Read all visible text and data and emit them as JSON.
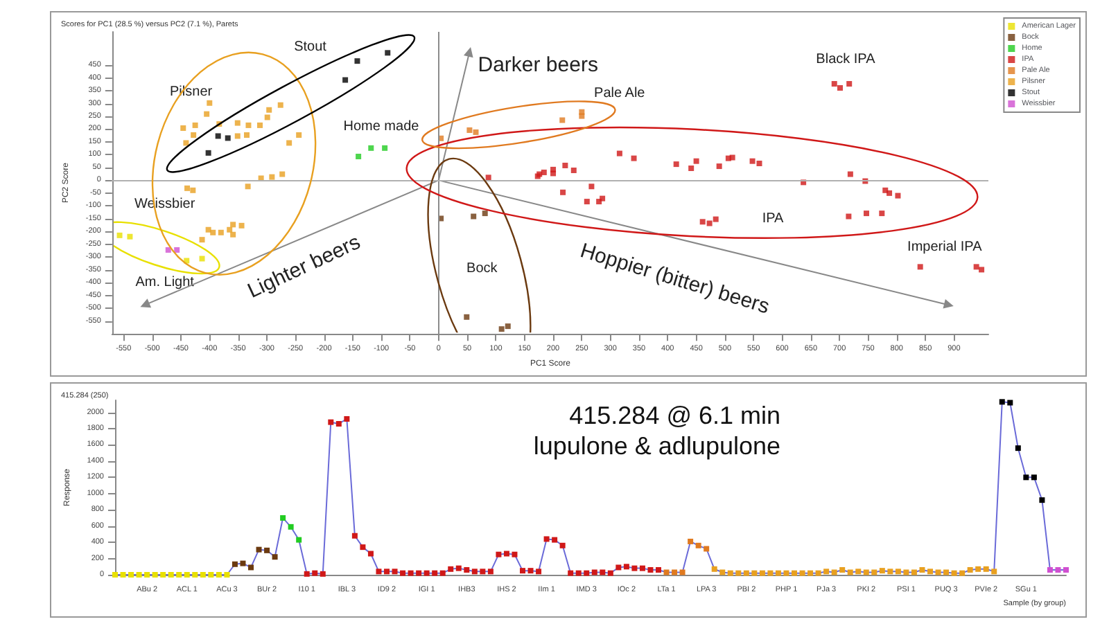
{
  "chart_data": [
    {
      "type": "scatter",
      "title": "Scores for PC1 (28.5 %) versus PC2 (7.1 %), Parets",
      "xlabel": "PC1 Score",
      "ylabel": "PC2 Score",
      "xlim": [
        -570,
        960
      ],
      "ylim": [
        -600,
        580
      ],
      "xticks": [
        -550,
        -500,
        -450,
        -400,
        -350,
        -300,
        -250,
        -200,
        -150,
        -100,
        -50,
        0,
        50,
        100,
        150,
        200,
        250,
        300,
        350,
        400,
        450,
        500,
        550,
        600,
        650,
        700,
        750,
        800,
        850,
        900
      ],
      "yticks": [
        -550,
        -500,
        -450,
        -400,
        -350,
        -300,
        -250,
        -200,
        -150,
        -100,
        -50,
        0,
        50,
        100,
        150,
        200,
        250,
        300,
        350,
        400,
        450
      ],
      "grid": false,
      "legend": "top right",
      "marker": "square",
      "ref_lines": [
        {
          "axis": "x",
          "value": 0,
          "color": "#8c8c8c"
        },
        {
          "axis": "y",
          "value": 0,
          "color": "#b0b0b0"
        }
      ],
      "series": [
        {
          "name": "American Lager",
          "color": "#e8e000",
          "x": [
            -557,
            -539,
            -413,
            -440
          ],
          "values": [
            -215,
            -220,
            -306,
            -314
          ]
        },
        {
          "name": "Bock",
          "color": "#6b3a10",
          "x": [
            4,
            61,
            81,
            49,
            110,
            121
          ],
          "values": [
            -149,
            -141,
            -129,
            -534,
            -581,
            -570
          ]
        },
        {
          "name": "Home",
          "color": "#22cc22",
          "x": [
            -118,
            -94,
            -140
          ],
          "values": [
            126,
            126,
            93
          ]
        },
        {
          "name": "IPA",
          "color": "#d01818",
          "x": [
            316,
            341,
            87,
            176,
            184,
            173,
            200,
            200,
            221,
            236,
            217,
            267,
            259,
            280,
            286,
            415,
            441,
            450,
            490,
            506,
            513,
            548,
            560,
            637,
            719,
            745,
            780,
            787,
            802,
            461,
            473,
            484,
            716,
            747,
            774,
            691,
            701,
            717,
            841,
            939,
            948
          ],
          "values": [
            105,
            86,
            11,
            24,
            31,
            16,
            42,
            27,
            58,
            39,
            -47,
            -24,
            -83,
            -83,
            -71,
            63,
            47,
            75,
            55,
            86,
            89,
            75,
            66,
            -8,
            24,
            -3,
            -39,
            -50,
            -60,
            -162,
            -168,
            -152,
            -141,
            -129,
            -129,
            377,
            361,
            377,
            -338,
            -338,
            -349
          ]
        },
        {
          "name": "Pale Ale",
          "color": "#e07a20",
          "x": [
            4,
            54,
            65,
            216,
            250,
            250
          ],
          "values": [
            164,
            196,
            188,
            235,
            251,
            267
          ]
        },
        {
          "name": "Pilsner",
          "color": "#e8a020",
          "x": [
            -400,
            -405,
            -446,
            -425,
            -428,
            -441,
            -383,
            -351,
            -332,
            -351,
            -335,
            -296,
            -276,
            -299,
            -312,
            -261,
            -244,
            -310,
            -291,
            -273,
            -333,
            -439,
            -429,
            -365,
            -359,
            -402,
            -380,
            -413,
            -359,
            -344,
            -394
          ],
          "values": [
            302,
            259,
            204,
            215,
            177,
            146,
            220,
            224,
            215,
            173,
            177,
            275,
            294,
            246,
            215,
            146,
            177,
            8,
            13,
            24,
            -24,
            -31,
            -39,
            -193,
            -212,
            -193,
            -204,
            -232,
            -173,
            -177,
            -204
          ]
        },
        {
          "name": "Stout",
          "color": "#000000",
          "x": [
            -142,
            -89,
            -163,
            -368,
            -385,
            -402
          ],
          "values": [
            466,
            498,
            392,
            165,
            173,
            107
          ]
        },
        {
          "name": "Weissbier",
          "color": "#d050d0",
          "x": [
            -472,
            -457
          ],
          "values": [
            -272,
            -272
          ]
        },
        {
          "type": "line",
          "color": "#888888",
          "marker": "triangle",
          "x": [
            0,
            54
          ],
          "values": [
            0,
            502
          ]
        },
        {
          "type": "line",
          "color": "#888888",
          "marker": "triangle",
          "x": [
            0,
            -513
          ],
          "values": [
            0,
            -487
          ]
        },
        {
          "type": "line",
          "color": "#888888",
          "marker": "triangle",
          "x": [
            0,
            891
          ],
          "values": [
            0,
            -487
          ]
        }
      ],
      "annotations": [
        "Stout",
        "Pilsner",
        "Home made",
        "Weissbier",
        "Am. Light",
        "Lighter beers",
        "Darker beers",
        "Pale Ale",
        "Black IPA",
        "IPA",
        "Imperial IPA",
        "Bock",
        "Hoppier (bitter) beers"
      ]
    },
    {
      "type": "line",
      "title": "415.284 (250)",
      "xlabel": "Sample (by group)",
      "ylabel": "Response",
      "ylim": [
        0,
        2150
      ],
      "yticks": [
        0,
        200,
        400,
        600,
        800,
        1000,
        1200,
        1400,
        1600,
        1800,
        2000
      ],
      "grid": false,
      "marker": "square",
      "color": "#6a6ad8",
      "annotations": [
        "415.284 @ 6.1 min",
        "lupulone & adlupulone"
      ],
      "categories": [
        null,
        null,
        null,
        null,
        "ABu 2",
        null,
        null,
        null,
        null,
        "ACL 1",
        null,
        null,
        null,
        null,
        "ACu 3",
        null,
        null,
        null,
        null,
        "BUr 2",
        null,
        null,
        null,
        null,
        "I10 1",
        null,
        null,
        null,
        null,
        "IBL 3",
        null,
        null,
        null,
        null,
        "ID9 2",
        null,
        null,
        null,
        null,
        "IGI 1",
        null,
        null,
        null,
        null,
        "IHB3",
        null,
        null,
        null,
        null,
        "IHS 2",
        null,
        null,
        null,
        null,
        "IIm 1",
        null,
        null,
        null,
        null,
        "IMD 3",
        null,
        null,
        null,
        null,
        "IOc 2",
        null,
        null,
        null,
        null,
        "LTa 1",
        null,
        null,
        null,
        null,
        "LPA 3",
        null,
        null,
        null,
        null,
        "PBI 2",
        null,
        null,
        null,
        null,
        "PHP 1",
        null,
        null,
        null,
        null,
        "PJa 3",
        null,
        null,
        null,
        null,
        "PKI 2",
        null,
        null,
        null,
        null,
        "PSI 1",
        null,
        null,
        null,
        null,
        "PUQ 3",
        null,
        null,
        null,
        null,
        "PVIe 2",
        null,
        null,
        null,
        null,
        "SGu 1",
        null,
        null,
        null,
        null,
        null
      ],
      "values": [
        0,
        0,
        0,
        0,
        0,
        0,
        0,
        0,
        0,
        0,
        0,
        0,
        0,
        0,
        0,
        130,
        140,
        90,
        310,
        300,
        220,
        700,
        590,
        430,
        10,
        20,
        10,
        1880,
        1860,
        1920,
        480,
        340,
        260,
        40,
        40,
        40,
        20,
        20,
        20,
        20,
        20,
        20,
        70,
        80,
        60,
        40,
        40,
        40,
        250,
        260,
        250,
        50,
        50,
        40,
        440,
        430,
        360,
        20,
        20,
        20,
        30,
        30,
        20,
        90,
        100,
        80,
        80,
        60,
        60,
        30,
        30,
        30,
        410,
        360,
        320,
        70,
        30,
        20,
        20,
        20,
        20,
        20,
        20,
        20,
        20,
        20,
        20,
        20,
        20,
        40,
        30,
        60,
        30,
        40,
        30,
        30,
        50,
        40,
        40,
        30,
        30,
        60,
        40,
        30,
        30,
        20,
        20,
        60,
        70,
        70,
        40,
        2130,
        2120,
        1560,
        1200,
        1200,
        920,
        60,
        60,
        60
      ],
      "colors": [
        "#e8e000",
        "#e8e000",
        "#e8e000",
        "#e8e000",
        "#e8e000",
        "#e8e000",
        "#e8e000",
        "#e8e000",
        "#e8e000",
        "#e8e000",
        "#e8e000",
        "#e8e000",
        "#e8e000",
        "#e8e000",
        "#e8e000",
        "#6b3a10",
        "#6b3a10",
        "#6b3a10",
        "#6b3a10",
        "#6b3a10",
        "#6b3a10",
        "#22cc22",
        "#22cc22",
        "#22cc22",
        "#d01818",
        "#d01818",
        "#d01818",
        "#d01818",
        "#d01818",
        "#d01818",
        "#d01818",
        "#d01818",
        "#d01818",
        "#d01818",
        "#d01818",
        "#d01818",
        "#d01818",
        "#d01818",
        "#d01818",
        "#d01818",
        "#d01818",
        "#d01818",
        "#d01818",
        "#d01818",
        "#d01818",
        "#d01818",
        "#d01818",
        "#d01818",
        "#d01818",
        "#d01818",
        "#d01818",
        "#d01818",
        "#d01818",
        "#d01818",
        "#d01818",
        "#d01818",
        "#d01818",
        "#d01818",
        "#d01818",
        "#d01818",
        "#d01818",
        "#d01818",
        "#d01818",
        "#d01818",
        "#d01818",
        "#d01818",
        "#d01818",
        "#d01818",
        "#d01818",
        "#e07a20",
        "#e07a20",
        "#e07a20",
        "#e07a20",
        "#e07a20",
        "#e07a20",
        "#e8a020",
        "#e8a020",
        "#e8a020",
        "#e8a020",
        "#e8a020",
        "#e8a020",
        "#e8a020",
        "#e8a020",
        "#e8a020",
        "#e8a020",
        "#e8a020",
        "#e8a020",
        "#e8a020",
        "#e8a020",
        "#e8a020",
        "#e8a020",
        "#e8a020",
        "#e8a020",
        "#e8a020",
        "#e8a020",
        "#e8a020",
        "#e8a020",
        "#e8a020",
        "#e8a020",
        "#e8a020",
        "#e8a020",
        "#e8a020",
        "#e8a020",
        "#e8a020",
        "#e8a020",
        "#e8a020",
        "#e8a020",
        "#e8a020",
        "#e8a020",
        "#e8a020",
        "#e8a020",
        "#000000",
        "#000000",
        "#000000",
        "#000000",
        "#000000",
        "#000000",
        "#d050d0",
        "#d050d0",
        "#d050d0"
      ]
    }
  ]
}
